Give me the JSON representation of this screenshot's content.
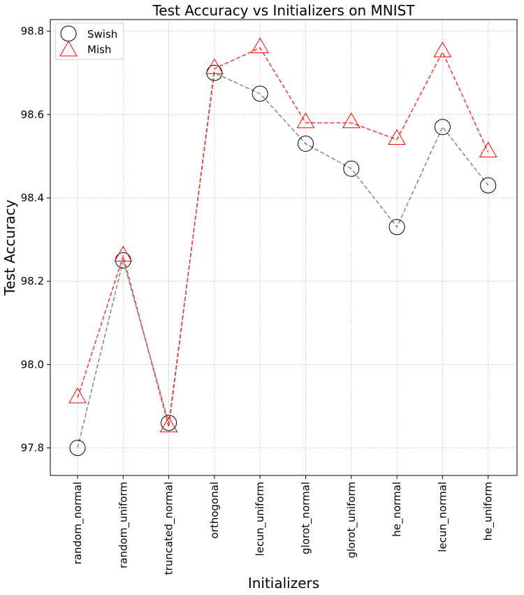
{
  "chart_data": {
    "type": "line",
    "title": "Test Accuracy vs Initializers on MNIST",
    "xlabel": "Initializers",
    "ylabel": "Test Accuracy",
    "categories": [
      "random_normal",
      "random_uniform",
      "truncated_normal",
      "orthogonal",
      "lecun_uniform",
      "glorot_normal",
      "glorot_uniform",
      "he_normal",
      "lecun_normal",
      "he_uniform"
    ],
    "ylim": [
      97.73,
      98.83
    ],
    "yticks": [
      97.8,
      98.0,
      98.2,
      98.4,
      98.6,
      98.8
    ],
    "ytick_labels": [
      "97.8",
      "98.0",
      "98.2",
      "98.4",
      "98.6",
      "98.8"
    ],
    "grid": true,
    "legend_position": "top-left",
    "series": [
      {
        "name": "Swish",
        "marker": "circle",
        "marker_color": "#000000",
        "line_color": "#8c8c8c",
        "line_style": "dashed",
        "values": [
          97.8,
          98.25,
          97.86,
          98.7,
          98.65,
          98.53,
          98.47,
          98.33,
          98.57,
          98.43
        ]
      },
      {
        "name": "Mish",
        "marker": "triangle",
        "marker_color": "#ff0000",
        "line_color": "#f04040",
        "line_style": "dashed",
        "values": [
          97.92,
          98.26,
          97.85,
          98.71,
          98.76,
          98.58,
          98.58,
          98.54,
          98.75,
          98.51
        ]
      }
    ]
  }
}
